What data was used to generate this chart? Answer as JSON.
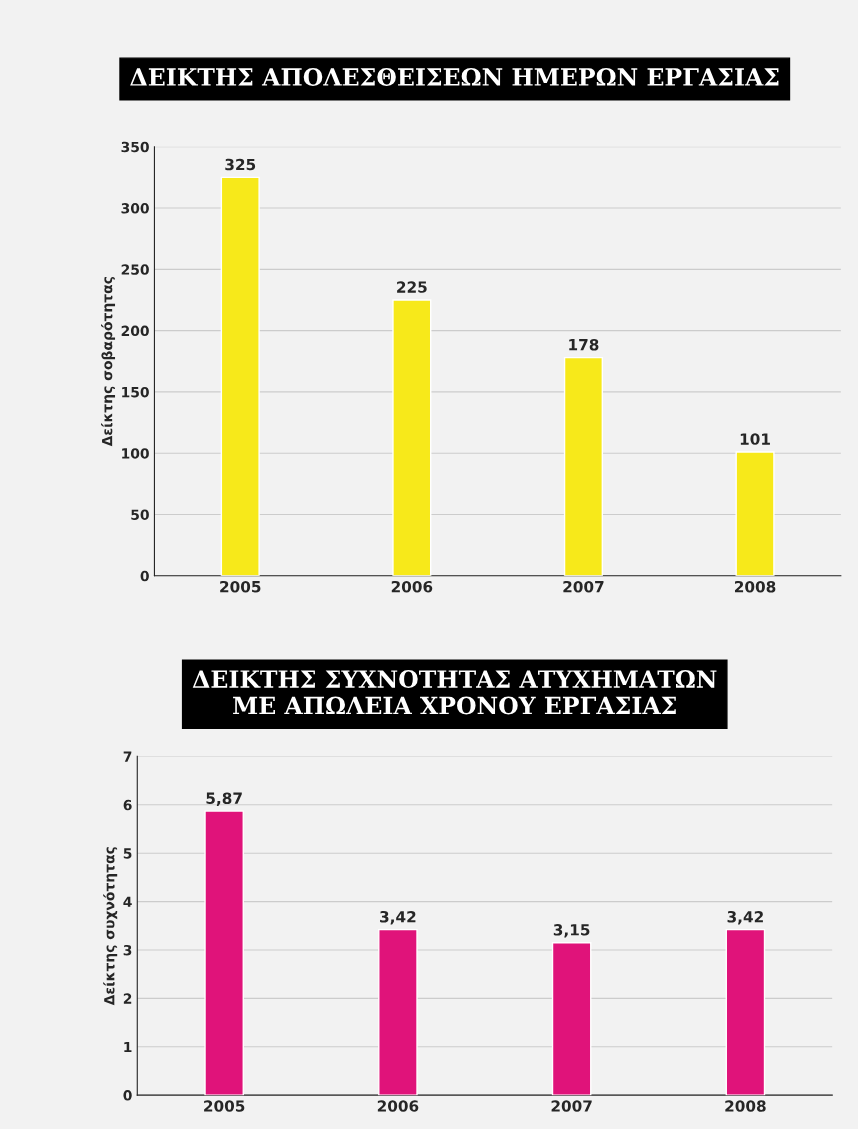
{
  "chart_data": [
    {
      "type": "bar",
      "title": "ΔΕΙΚΤΗΣ ΑΠΟΛΕΣΘΕΙΣΕΩΝ ΗΜΕΡΩΝ ΕΡΓΑΣΙΑΣ",
      "ylabel": "Δείκτης σοβαρότητας",
      "categories": [
        "2005",
        "2006",
        "2007",
        "2008"
      ],
      "values": [
        325,
        225,
        178,
        101
      ],
      "color": "#f7e91a",
      "ylim": [
        0,
        350
      ],
      "yticks": [
        0,
        50,
        100,
        150,
        200,
        250,
        300,
        350
      ],
      "grid": "y",
      "data_labels": true
    },
    {
      "type": "bar",
      "title": "ΔΕΙΚΤΗΣ ΣΥΧΝΟΤΗΤΑΣ ΑΤΥΧΗΜΑΤΩΝ\nΜΕ ΑΠΩΛΕΙΑ ΧΡΟΝΟΥ ΕΡΓΑΣΙΑΣ",
      "ylabel": "Δείκτης συχνότητας",
      "categories": [
        "2005",
        "2006",
        "2007",
        "2008"
      ],
      "values": [
        5.87,
        3.42,
        3.15,
        3.42
      ],
      "value_labels": [
        "5,87",
        "3,42",
        "3,15",
        "3,42"
      ],
      "color": "#e0137a",
      "ylim": [
        0,
        7
      ],
      "yticks": [
        0,
        1,
        2,
        3,
        4,
        5,
        6,
        7
      ],
      "grid": "y"
    }
  ]
}
